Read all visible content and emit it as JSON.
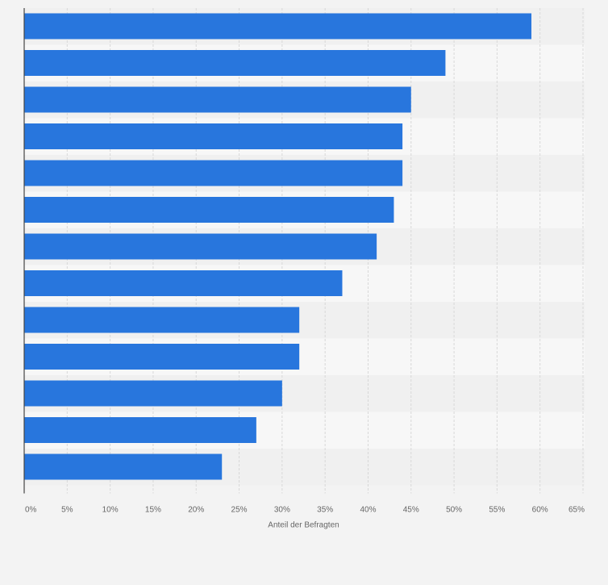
{
  "chart_data": {
    "type": "bar",
    "orientation": "horizontal",
    "categories": [
      "",
      "",
      "",
      "",
      "",
      "",
      "",
      "",
      "",
      "",
      "",
      "",
      ""
    ],
    "values": [
      59,
      49,
      45,
      44,
      44,
      43,
      41,
      37,
      32,
      32,
      30,
      27,
      23
    ],
    "xlabel": "Anteil der Befragten",
    "xlim": [
      0,
      65
    ],
    "xticks": [
      "0%",
      "5%",
      "10%",
      "15%",
      "20%",
      "25%",
      "30%",
      "35%",
      "40%",
      "45%",
      "50%",
      "55%",
      "60%",
      "65%"
    ],
    "grid": true,
    "colors": {
      "bar": "#2876dd",
      "row_band_dark": "#f0f0f0",
      "row_band_light": "#f7f7f7",
      "grid": "#d8d8d8",
      "axis": "#444444",
      "tick_text": "#666666"
    }
  }
}
